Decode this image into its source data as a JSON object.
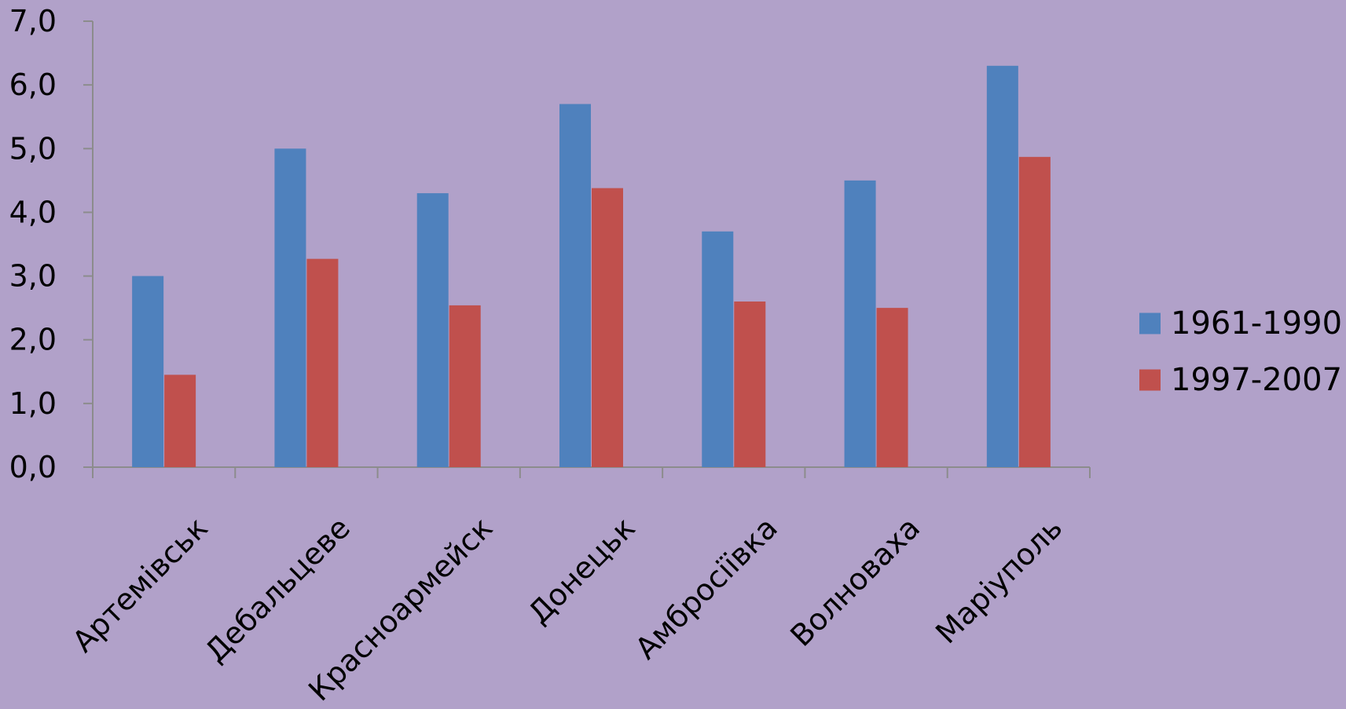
{
  "chart_data": {
    "type": "bar",
    "title": "",
    "xlabel": "",
    "ylabel": "",
    "categories": [
      "Артемівськ",
      "Дебальцеве",
      "Красноармейск",
      "Донецьк",
      "Амбросіївка",
      "Волноваха",
      "Маріуполь"
    ],
    "series": [
      {
        "name": "1961-1990",
        "color": "#4f81bd",
        "values": [
          3.0,
          5.0,
          4.3,
          5.7,
          3.7,
          4.5,
          6.3
        ]
      },
      {
        "name": "1997-2007",
        "color": "#c0504d",
        "values": [
          1.45,
          3.27,
          2.54,
          4.38,
          2.6,
          2.5,
          4.87
        ]
      }
    ],
    "ylim": [
      0,
      7
    ],
    "yticks": [
      "0,0",
      "1,0",
      "2,0",
      "3,0",
      "4,0",
      "5,0",
      "6,0",
      "7,0"
    ],
    "grid": false,
    "legend_position": "right",
    "background_color": "#b1a1c9",
    "axis_color": "#8c8c8c"
  }
}
